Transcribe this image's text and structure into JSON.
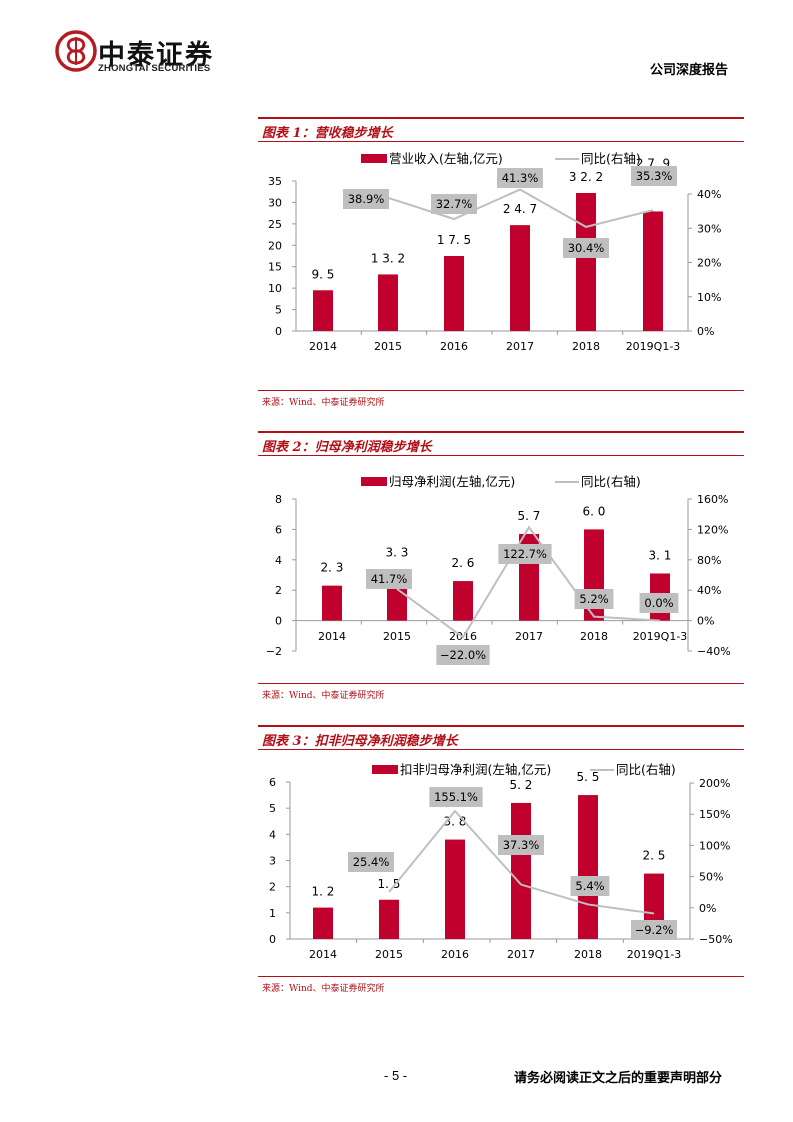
{
  "header": {
    "logo_cn": "中泰证券",
    "logo_en": "ZHONGTAI SECURITIES",
    "report_type": "公司深度报告"
  },
  "footer": {
    "page_number": "- 5 -",
    "disclaimer": "请务必阅读正文之后的重要声明部分"
  },
  "colors": {
    "bar": "#c0002d",
    "line": "#bfbfbf",
    "label_box": "#bfbfbf",
    "title_red": "#b20f17",
    "axis": "#9a9a9a"
  },
  "figures": [
    {
      "title": "图表 1：营收稳步增长",
      "legend_bar": "营业收入(左轴,亿元)",
      "legend_line": "同比(右轴)",
      "source": "来源：Wind、中泰证券研究所"
    },
    {
      "title": "图表 2：归母净利润稳步增长",
      "legend_bar": "归母净利润(左轴,亿元)",
      "legend_line": "同比(右轴)",
      "source": "来源：Wind、中泰证券研究所"
    },
    {
      "title": "图表 3：扣非归母净利润稳步增长",
      "legend_bar": "扣非归母净利润(左轴,亿元)",
      "legend_line": "同比(右轴)",
      "source": "来源：Wind、中泰证券研究所"
    }
  ],
  "chart_data": [
    {
      "type": "bar",
      "title": "图表 1：营收稳步增长",
      "categories": [
        "2014",
        "2015",
        "2016",
        "2017",
        "2018",
        "2019Q1-3"
      ],
      "series": [
        {
          "name": "营业收入(左轴,亿元)",
          "type": "bar",
          "axis": "left",
          "values": [
            9.5,
            13.2,
            17.5,
            24.7,
            32.2,
            27.9
          ],
          "labels": [
            "9.5",
            "13.2",
            "17.5",
            "24.7",
            "32.2",
            "27.9"
          ]
        },
        {
          "name": "同比(右轴)",
          "type": "line",
          "axis": "right",
          "values": [
            null,
            38.9,
            32.7,
            41.3,
            30.4,
            35.3
          ],
          "labels": [
            "",
            "38.9%",
            "32.7%",
            "41.3%",
            "30.4%",
            "35.3%"
          ]
        }
      ],
      "left_axis": {
        "min": 0,
        "max": 35,
        "ticks": [
          "0",
          "5",
          "10",
          "15",
          "20",
          "25",
          "30",
          "35"
        ]
      },
      "right_axis": {
        "min": 0,
        "max": 50,
        "ticks": [
          "0%",
          "10%",
          "20%",
          "30%",
          "40%"
        ]
      },
      "legend_position": "top"
    },
    {
      "type": "bar",
      "title": "图表 2：归母净利润稳步增长",
      "categories": [
        "2014",
        "2015",
        "2016",
        "2017",
        "2018",
        "2019Q1-3"
      ],
      "series": [
        {
          "name": "归母净利润(左轴,亿元)",
          "type": "bar",
          "axis": "left",
          "values": [
            2.3,
            3.3,
            2.6,
            5.7,
            6.0,
            3.1
          ],
          "labels": [
            "2.3",
            "3.3",
            "2.6",
            "5.7",
            "6.0",
            "3.1"
          ]
        },
        {
          "name": "同比(右轴)",
          "type": "line",
          "axis": "right",
          "values": [
            null,
            41.7,
            -22.0,
            122.7,
            5.2,
            0.0
          ],
          "labels": [
            "",
            "41.7%",
            "-22.0%",
            "122.7%",
            "5.2%",
            "0.0%"
          ]
        }
      ],
      "left_axis": {
        "min": -2,
        "max": 8,
        "ticks": [
          "-2",
          "0",
          "2",
          "4",
          "6",
          "8"
        ]
      },
      "right_axis": {
        "min": -40,
        "max": 160,
        "ticks": [
          "-40%",
          "0%",
          "40%",
          "80%",
          "120%",
          "160%"
        ]
      },
      "legend_position": "top"
    },
    {
      "type": "bar",
      "title": "图表 3：扣非归母净利润稳步增长",
      "categories": [
        "2014",
        "2015",
        "2016",
        "2017",
        "2018",
        "2019Q1-3"
      ],
      "series": [
        {
          "name": "扣非归母净利润(左轴,亿元)",
          "type": "bar",
          "axis": "left",
          "values": [
            1.2,
            1.5,
            3.8,
            5.2,
            5.5,
            2.5
          ],
          "labels": [
            "1.2",
            "1.5",
            "3.8",
            "5.2",
            "5.5",
            "2.5"
          ]
        },
        {
          "name": "同比(右轴)",
          "type": "line",
          "axis": "right",
          "values": [
            null,
            25.4,
            155.1,
            37.3,
            5.4,
            -9.2
          ],
          "labels": [
            "",
            "25.4%",
            "155.1%",
            "37.3%",
            "5.4%",
            "-9.2%"
          ]
        }
      ],
      "left_axis": {
        "min": 0,
        "max": 6,
        "ticks": [
          "0",
          "1",
          "2",
          "3",
          "4",
          "5",
          "6"
        ]
      },
      "right_axis": {
        "min": -50,
        "max": 200,
        "ticks": [
          "-50%",
          "0%",
          "50%",
          "100%",
          "150%",
          "200%"
        ]
      },
      "legend_position": "top"
    }
  ]
}
